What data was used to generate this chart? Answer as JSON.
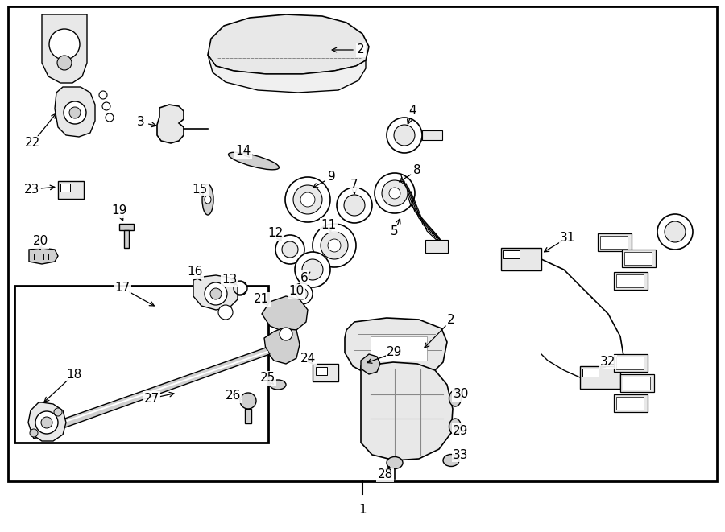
{
  "bg": "#ffffff",
  "fw": 9.0,
  "fh": 6.61,
  "dpi": 100,
  "fs": 11
}
